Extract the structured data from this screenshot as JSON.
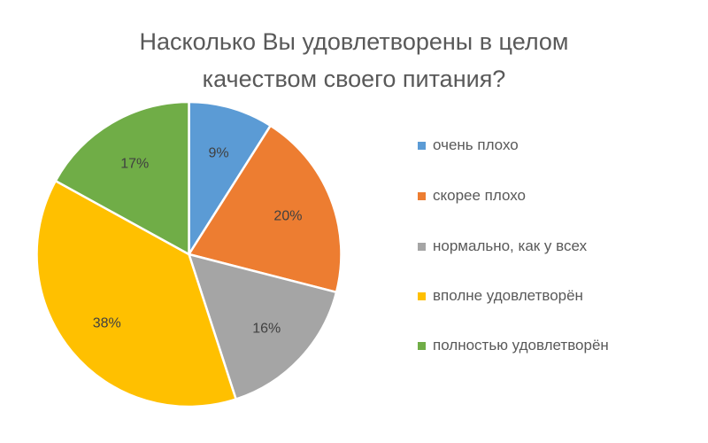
{
  "chart_data": {
    "type": "pie",
    "title": "Насколько Вы удовлетворены в целом качеством своего питания?",
    "title_lines": [
      "Насколько Вы удовлетворены в целом",
      "качеством своего питания?"
    ],
    "categories": [
      "очень плохо",
      "скорее плохо",
      "нормально, как у всех",
      "вполне удовлетворён",
      "полностью удовлетворён"
    ],
    "values": [
      9,
      20,
      16,
      38,
      17
    ],
    "labels": [
      "9%",
      "20%",
      "16%",
      "38%",
      "17%"
    ],
    "colors": [
      "#5B9BD5",
      "#ED7D31",
      "#A5A5A5",
      "#FFC000",
      "#70AD47"
    ],
    "start_angle": "12 o'clock, clockwise",
    "legend_position": "right",
    "unit": "%"
  }
}
